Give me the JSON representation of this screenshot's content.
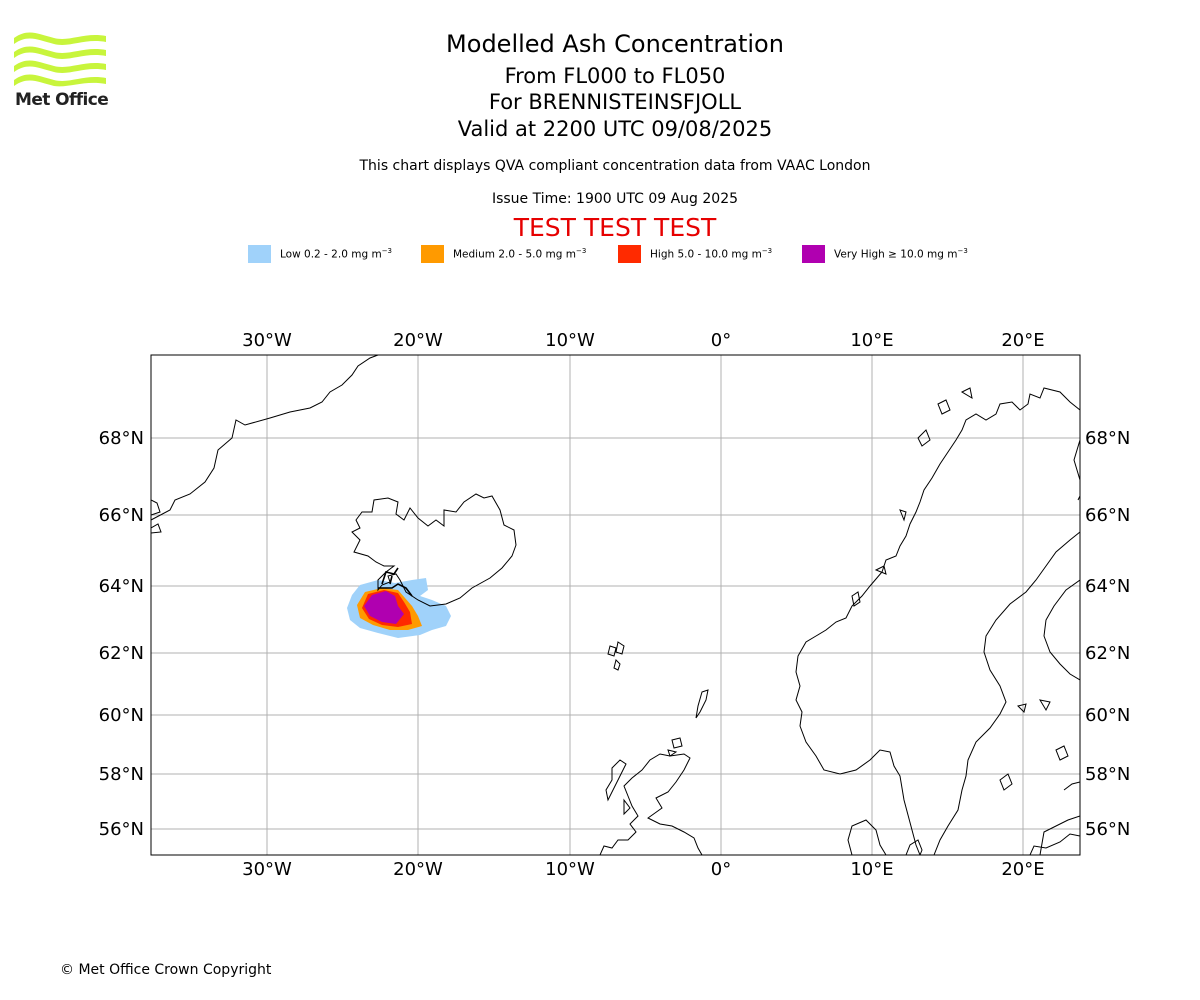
{
  "logo": {
    "text": "Met Office",
    "color": "#c8f53c"
  },
  "title": {
    "line1": "Modelled Ash Concentration",
    "line2": "From FL000 to FL050",
    "line3": "For BRENNISTEINSFJOLL",
    "line4": "Valid at 2200 UTC 09/08/2025"
  },
  "subtitle": "This chart displays QVA compliant concentration data from VAAC London",
  "issue_time": "Issue Time: 1900 UTC 09 Aug 2025",
  "test_banner": {
    "text": "TEST TEST TEST",
    "color": "#e60000"
  },
  "legend": [
    {
      "label": "Low 0.2 - 2.0 mg m",
      "sup": "−3",
      "color": "#a0d2fa"
    },
    {
      "label": "Medium 2.0 - 5.0 mg m",
      "sup": "−3",
      "color": "#ff9a00"
    },
    {
      "label": "High 5.0 - 10.0 mg m",
      "sup": "−3",
      "color": "#ff2a00"
    },
    {
      "label": "Very High  ≥  10.0 mg m",
      "sup": "−3",
      "color": "#b000b0"
    }
  ],
  "map": {
    "lon_labels": [
      "30°W",
      "20°W",
      "10°W",
      "0°",
      "10°E",
      "20°E"
    ],
    "lat_labels": [
      "68°N",
      "66°N",
      "64°N",
      "62°N",
      "60°N",
      "58°N",
      "56°N"
    ],
    "volcano": "BRENNISTEINSFJOLL"
  },
  "copyright": "© Met Office Crown Copyright"
}
